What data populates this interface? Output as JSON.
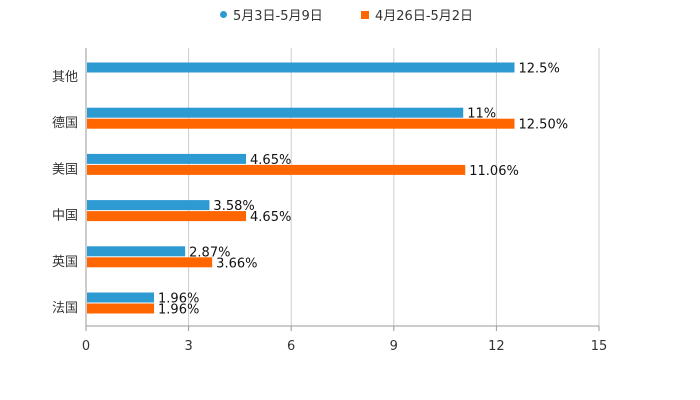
{
  "chart_data": {
    "type": "bar",
    "orientation": "horizontal",
    "categories": [
      "其他",
      "德国",
      "美国",
      "中国",
      "英国",
      "法国"
    ],
    "series": [
      {
        "name": "5月3日-5月9日",
        "color": "#2e9ad2",
        "values": [
          12.5,
          11,
          4.65,
          3.58,
          2.87,
          1.96
        ],
        "labels": [
          "12.5%",
          "11%",
          "4.65%",
          "3.58%",
          "2.87%",
          "1.96%"
        ]
      },
      {
        "name": "4月26日-5月2日",
        "color": "#ff6600",
        "values": [
          null,
          12.5,
          11.06,
          4.65,
          3.66,
          1.96
        ],
        "labels": [
          null,
          "12.50%",
          "11.06%",
          "4.65%",
          "3.66%",
          "1.96%"
        ]
      }
    ],
    "xlim": [
      0,
      15
    ],
    "xticks": [
      0,
      3,
      6,
      9,
      12,
      15
    ],
    "xtick_labels": [
      "0",
      "3",
      "6",
      "9",
      "12",
      "15"
    ],
    "grid": true,
    "legend_position": "top-center",
    "title": "",
    "xlabel": "",
    "ylabel": ""
  }
}
